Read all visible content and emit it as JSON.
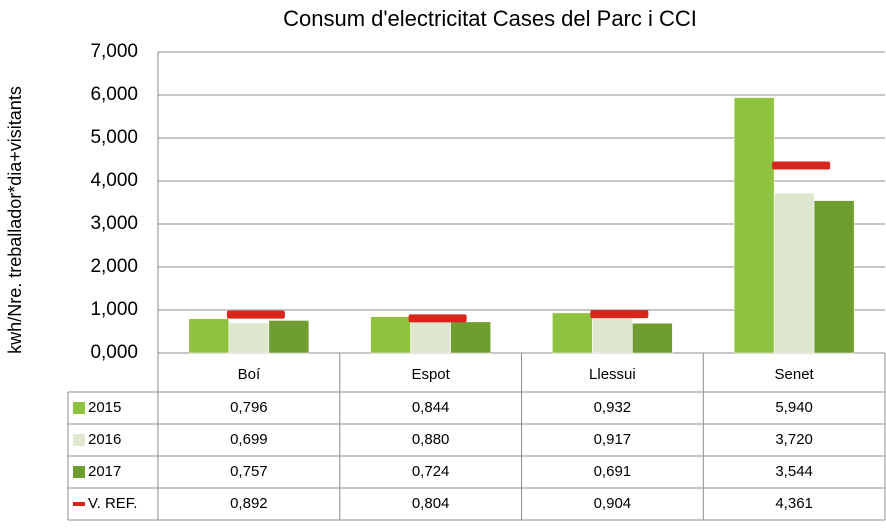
{
  "chart_data": {
    "type": "bar",
    "title": "Consum d'electricitat Cases del Parc i CCI",
    "y_label": "kwh/Nre. treballador*dia+visitants",
    "categories": [
      "Boí",
      "Espot",
      "Llessui",
      "Senet"
    ],
    "series": [
      {
        "name": "2015",
        "color": "#8fc23f",
        "values": [
          0.796,
          0.844,
          0.932,
          5.94
        ],
        "value_labels": [
          "0,796",
          "0,844",
          "0,932",
          "5,940"
        ]
      },
      {
        "name": "2016",
        "color": "#dfe8cf",
        "values": [
          0.699,
          0.88,
          0.917,
          3.72
        ],
        "value_labels": [
          "0,699",
          "0,880",
          "0,917",
          "3,720"
        ]
      },
      {
        "name": "2017",
        "color": "#6f9d2f",
        "values": [
          0.757,
          0.724,
          0.691,
          3.544
        ],
        "value_labels": [
          "0,757",
          "0,724",
          "0,691",
          "3,544"
        ]
      },
      {
        "name": "V. REF.",
        "color": "#d9261c",
        "style": "dash",
        "values": [
          0.892,
          0.804,
          0.904,
          4.361
        ],
        "value_labels": [
          "0,892",
          "0,804",
          "0,904",
          "4,361"
        ]
      }
    ],
    "ylim": [
      0,
      7
    ],
    "yticks": [
      {
        "value": 0,
        "label": "0,000"
      },
      {
        "value": 1,
        "label": "1,000"
      },
      {
        "value": 2,
        "label": "2,000"
      },
      {
        "value": 3,
        "label": "3,000"
      },
      {
        "value": 4,
        "label": "4,000"
      },
      {
        "value": 5,
        "label": "5,000"
      },
      {
        "value": 6,
        "label": "6,000"
      },
      {
        "value": 7,
        "label": "7,000"
      }
    ],
    "grid": true
  }
}
